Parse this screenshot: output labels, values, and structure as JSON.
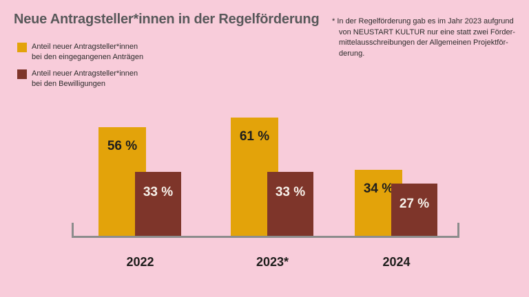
{
  "title": "Neue Antragsteller*innen in der Regelförderung",
  "legend": {
    "items": [
      {
        "label_line1": "Anteil neuer Antragsteller*innen",
        "label_line2": "bei den eingegangenen Anträgen",
        "color": "#E3A30A"
      },
      {
        "label_line1": "Anteil neuer Antragsteller*innen",
        "label_line2": "bei den Bewilligungen",
        "color": "#7E352A"
      }
    ]
  },
  "footnote": {
    "lines": [
      "* In der Regelförderung gab es im Jahr 2023 aufgrund",
      "von NEUSTART KULTUR nur eine statt zwei Förder-",
      "mittelausschreibungen der Allgemeinen Projektför-",
      "derung."
    ]
  },
  "chart_data": {
    "type": "bar",
    "title": "Neue Antragsteller*innen in der Regelförderung",
    "categories": [
      "2022",
      "2023*",
      "2024"
    ],
    "series": [
      {
        "name": "Anteil neuer Antragsteller*innen bei den eingegangenen Anträgen",
        "values": [
          56,
          61,
          34
        ],
        "color": "#E3A30A",
        "label_color": "#1E1E1E"
      },
      {
        "name": "Anteil neuer Antragsteller*innen bei den Bewilligungen",
        "values": [
          33,
          33,
          27
        ],
        "color": "#7E352A",
        "label_color": "#F7F1EA"
      }
    ],
    "value_suffix": " %",
    "xlabel": "",
    "ylabel": "",
    "ylim": [
      0,
      100
    ],
    "grid": false,
    "legend_position": "top-left",
    "annotation": "* In der Regelförderung gab es im Jahr 2023 aufgrund von NEUSTART KULTUR nur eine statt zwei Fördermittelausschreibungen der Allgemeinen Projektförderung."
  },
  "colors": {
    "background": "#F8CCDA",
    "title": "#58585A",
    "body_text": "#2B2B2B",
    "axis": "#8C8C8C",
    "year_label": "#1C1C1A"
  }
}
